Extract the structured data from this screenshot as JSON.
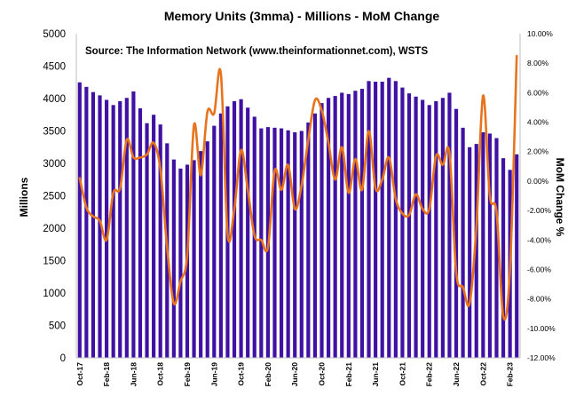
{
  "colors": {
    "bar": "#3f12a3",
    "line": "#e8731e",
    "axis": "#bfbfbf"
  },
  "chart_data": {
    "type": "bar+line",
    "title": "Memory Units (3mma) - Millions - MoM Change",
    "annotation": "Source: The Information Network (www.theinformationnet.com), WSTS",
    "ylabel": "Millions",
    "y2label": "MoM Change %",
    "ylim": [
      0,
      5000
    ],
    "y2lim": [
      -12,
      10
    ],
    "yticks": [
      "0",
      "500",
      "1000",
      "1500",
      "2000",
      "2500",
      "3000",
      "3500",
      "4000",
      "4500",
      "5000"
    ],
    "y2ticks": [
      "-12.00%",
      "-10.00%",
      "-8.00%",
      "-6.00%",
      "-4.00%",
      "-2.00%",
      "0.00%",
      "2.00%",
      "4.00%",
      "6.00%",
      "8.00%",
      "10.00%"
    ],
    "x_tick_labels": [
      "Oct-17",
      "Feb-18",
      "Jun-18",
      "Oct-18",
      "Feb-19",
      "Jun-19",
      "Oct-19",
      "Feb-20",
      "Jun-20",
      "Oct-20",
      "Feb-21",
      "Jun-21",
      "Oct-21",
      "Feb-22",
      "Jun-22",
      "Oct-22",
      "Feb-23"
    ],
    "x_tick_every": 4,
    "months": [
      "Oct-17",
      "Nov-17",
      "Dec-17",
      "Jan-18",
      "Feb-18",
      "Mar-18",
      "Apr-18",
      "May-18",
      "Jun-18",
      "Jul-18",
      "Aug-18",
      "Sep-18",
      "Oct-18",
      "Nov-18",
      "Dec-18",
      "Jan-19",
      "Feb-19",
      "Mar-19",
      "Apr-19",
      "May-19",
      "Jun-19",
      "Jul-19",
      "Aug-19",
      "Sep-19",
      "Oct-19",
      "Nov-19",
      "Dec-19",
      "Jan-20",
      "Feb-20",
      "Mar-20",
      "Apr-20",
      "May-20",
      "Jun-20",
      "Jul-20",
      "Aug-20",
      "Sep-20",
      "Oct-20",
      "Nov-20",
      "Dec-20",
      "Jan-21",
      "Feb-21",
      "Mar-21",
      "Apr-21",
      "May-21",
      "Jun-21",
      "Jul-21",
      "Aug-21",
      "Sep-21",
      "Oct-21",
      "Nov-21",
      "Dec-21",
      "Jan-22",
      "Feb-22",
      "Mar-22",
      "Apr-22",
      "May-22",
      "Jun-22",
      "Jul-22",
      "Aug-22",
      "Sep-22",
      "Oct-22",
      "Nov-22",
      "Dec-22",
      "Jan-23",
      "Feb-23",
      "Mar-23"
    ],
    "series": [
      {
        "name": "Memory Units (3mma)",
        "type": "bar",
        "axis": "left",
        "values": [
          4250,
          4180,
          4100,
          4050,
          3980,
          3900,
          3960,
          4010,
          4110,
          3850,
          3620,
          3750,
          3600,
          3310,
          3060,
          2920,
          2980,
          3050,
          3190,
          3340,
          3580,
          3770,
          3880,
          3960,
          3990,
          3860,
          3720,
          3540,
          3560,
          3550,
          3540,
          3510,
          3480,
          3500,
          3630,
          3770,
          3930,
          4010,
          4040,
          4090,
          4070,
          4120,
          4150,
          4270,
          4260,
          4260,
          4320,
          4270,
          4170,
          4080,
          4030,
          3980,
          3900,
          3960,
          4010,
          4090,
          3840,
          3550,
          3250,
          3300,
          3480,
          3460,
          3390,
          3080,
          2900,
          3140
        ]
      },
      {
        "name": "MoM Change %",
        "type": "line",
        "axis": "right",
        "values": [
          0.2,
          -1.8,
          -2.4,
          -2.7,
          -4.0,
          -0.8,
          -0.5,
          2.8,
          1.6,
          1.6,
          1.8,
          2.6,
          0.8,
          -4.5,
          -8.3,
          -6.8,
          -5.0,
          3.8,
          0.4,
          4.7,
          4.6,
          7.3,
          -3.6,
          -1.9,
          2.1,
          -0.6,
          -3.7,
          -4.0,
          -4.5,
          0.7,
          -0.6,
          1.1,
          -1.9,
          -0.3,
          2.8,
          5.5,
          4.8,
          2.6,
          0.1,
          2.3,
          -0.8,
          1.5,
          -0.6,
          3.4,
          -0.5,
          0.1,
          1.6,
          -1.2,
          -2.2,
          -2.3,
          -0.9,
          -1.9,
          -1.9,
          1.7,
          1.1,
          1.9,
          -6.2,
          -7.2,
          -8.3,
          -3.1,
          5.8,
          -1.0,
          -2.1,
          -9.2,
          -6.0,
          8.5
        ]
      }
    ],
    "legend": "none",
    "grid": false
  }
}
